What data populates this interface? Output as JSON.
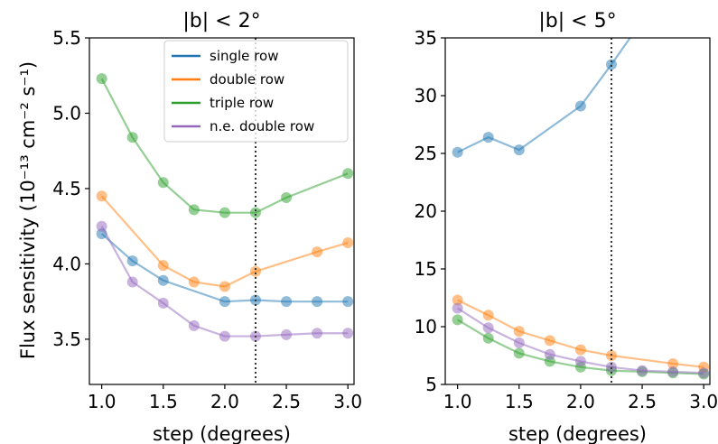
{
  "chart_data": [
    {
      "type": "line",
      "title": "|b| < 2°",
      "xlabel": "step (degrees)",
      "ylabel": "Flux sensitivity (10⁻¹³ cm⁻² s⁻¹)",
      "xlim": [
        0.9,
        3.05
      ],
      "ylim": [
        3.2,
        5.5
      ],
      "xticks": [
        "1.0",
        "1.5",
        "2.0",
        "2.5",
        "3.0"
      ],
      "xtick_values": [
        1.0,
        1.5,
        2.0,
        2.5,
        3.0
      ],
      "yticks": [
        "3.5",
        "4.0",
        "4.5",
        "5.0",
        "5.5"
      ],
      "ytick_values": [
        3.5,
        4.0,
        4.5,
        5.0,
        5.5
      ],
      "vline": 2.25,
      "legend": "top-right",
      "x": [
        1.0,
        1.25,
        1.5,
        1.75,
        2.0,
        2.25,
        2.5,
        2.75,
        3.0
      ],
      "series": [
        {
          "name": "single row",
          "color": "#1f77b4",
          "x": [
            1.0,
            1.25,
            1.5,
            2.0,
            2.25,
            2.5,
            2.75,
            3.0
          ],
          "values": [
            4.2,
            4.02,
            3.89,
            3.75,
            3.76,
            3.75,
            3.75,
            3.75
          ]
        },
        {
          "name": "double row",
          "color": "#ff7f0e",
          "x": [
            1.0,
            1.5,
            1.75,
            2.0,
            2.25,
            2.75,
            3.0
          ],
          "values": [
            4.45,
            3.99,
            3.88,
            3.85,
            3.95,
            4.08,
            4.14
          ]
        },
        {
          "name": "triple row",
          "color": "#2ca02c",
          "x": [
            1.0,
            1.25,
            1.5,
            1.75,
            2.0,
            2.25,
            2.5,
            3.0
          ],
          "values": [
            5.23,
            4.84,
            4.54,
            4.36,
            4.34,
            4.34,
            4.44,
            4.6
          ]
        },
        {
          "name": "n.e. double row",
          "color": "#9467bd",
          "x": [
            1.0,
            1.25,
            1.5,
            1.75,
            2.0,
            2.25,
            2.5,
            2.75,
            3.0
          ],
          "values": [
            4.25,
            3.88,
            3.74,
            3.59,
            3.52,
            3.52,
            3.53,
            3.54,
            3.54
          ]
        }
      ]
    },
    {
      "type": "line",
      "title": "|b| < 5°",
      "xlabel": "step (degrees)",
      "xlim": [
        0.9,
        3.05
      ],
      "ylim": [
        5,
        35
      ],
      "xticks": [
        "1.0",
        "1.5",
        "2.0",
        "2.5",
        "3.0"
      ],
      "xtick_values": [
        1.0,
        1.5,
        2.0,
        2.5,
        3.0
      ],
      "yticks": [
        "5",
        "10",
        "15",
        "20",
        "25",
        "30",
        "35"
      ],
      "ytick_values": [
        5,
        10,
        15,
        20,
        25,
        30,
        35
      ],
      "vline": 2.25,
      "series": [
        {
          "name": "single row",
          "color": "#1f77b4",
          "x": [
            1.0,
            1.25,
            1.5,
            2.0,
            2.25,
            2.5
          ],
          "values": [
            25.1,
            26.4,
            25.3,
            29.1,
            32.7,
            36.5
          ],
          "markers": 5
        },
        {
          "name": "double row",
          "color": "#ff7f0e",
          "x": [
            1.0,
            1.25,
            1.5,
            1.75,
            2.0,
            2.25,
            2.75,
            3.0
          ],
          "values": [
            12.3,
            11.0,
            9.6,
            8.8,
            8.0,
            7.5,
            6.8,
            6.5
          ]
        },
        {
          "name": "triple row",
          "color": "#2ca02c",
          "x": [
            1.0,
            1.25,
            1.5,
            1.75,
            2.0,
            2.25,
            2.5,
            2.75,
            3.0
          ],
          "values": [
            10.6,
            9.0,
            7.7,
            7.0,
            6.5,
            6.2,
            6.1,
            6.0,
            5.9
          ]
        },
        {
          "name": "n.e. double row",
          "color": "#9467bd",
          "x": [
            1.0,
            1.25,
            1.5,
            1.75,
            2.0,
            2.25,
            2.5,
            2.75,
            3.0
          ],
          "values": [
            11.6,
            9.9,
            8.6,
            7.6,
            7.0,
            6.5,
            6.2,
            6.1,
            6.0
          ]
        }
      ]
    }
  ]
}
